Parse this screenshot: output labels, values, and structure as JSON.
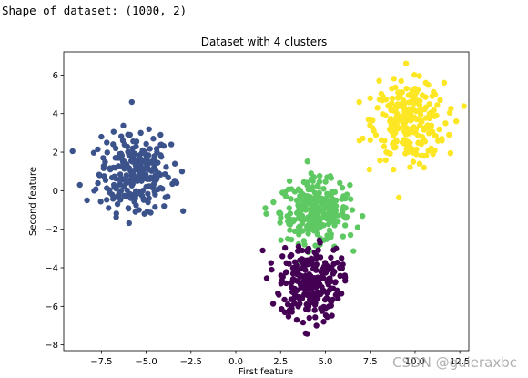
{
  "output": {
    "shape_text": "Shape of dataset: (1000, 2)"
  },
  "watermark": "CSDN @guieraxbc",
  "chart_data": {
    "type": "scatter",
    "title": "Dataset with 4 clusters",
    "xlabel": "First feature",
    "ylabel": "Second feature",
    "xlim": [
      -9.6,
      13.0
    ],
    "ylim": [
      -8.3,
      7.2
    ],
    "xticks": [
      -7.5,
      -5.0,
      -2.5,
      0.0,
      2.5,
      5.0,
      7.5,
      10.0,
      12.5
    ],
    "xtick_labels": [
      "−7.5",
      "−5.0",
      "−2.5",
      "0.0",
      "2.5",
      "5.0",
      "7.5",
      "10.0",
      "12.5"
    ],
    "yticks": [
      -8,
      -6,
      -4,
      -2,
      0,
      2,
      4,
      6
    ],
    "ytick_labels": [
      "−8",
      "−6",
      "−4",
      "−2",
      "0",
      "2",
      "4",
      "6"
    ],
    "grid": false,
    "legend": "none",
    "series": [
      {
        "color": "#3b528b",
        "count": 250,
        "points": [
          [
            -5.8,
            4.6
          ],
          [
            -5.3,
            1.2
          ],
          [
            -6.1,
            0.8
          ],
          [
            -4.7,
            1.5
          ],
          [
            -5.0,
            0.2
          ],
          [
            -6.5,
            1.9
          ],
          [
            -5.6,
            -0.4
          ],
          [
            -4.3,
            0.9
          ],
          [
            -7.0,
            1.1
          ],
          [
            -5.2,
            2.1
          ],
          [
            -6.0,
            -0.9
          ],
          [
            -4.9,
            -0.6
          ],
          [
            -5.7,
            1.6
          ],
          [
            -6.8,
            0.3
          ],
          [
            -4.4,
            2.0
          ],
          [
            -5.5,
            0.5
          ],
          [
            -7.4,
            1.7
          ],
          [
            -6.3,
            2.6
          ],
          [
            -4.1,
            0.1
          ],
          [
            -5.1,
            -1.2
          ],
          [
            -8.7,
            0.3
          ],
          [
            -8.3,
            -0.5
          ],
          [
            -7.9,
            0.0
          ],
          [
            -3.0,
            1.0
          ],
          [
            -3.4,
            1.4
          ],
          [
            -3.8,
            -0.3
          ],
          [
            -4.6,
            2.7
          ],
          [
            -5.9,
            2.9
          ],
          [
            -6.6,
            -0.7
          ],
          [
            -7.2,
            2.5
          ],
          [
            -5.4,
            -1.0
          ],
          [
            -4.0,
            -0.8
          ],
          [
            -6.2,
            1.3
          ],
          [
            -5.0,
            1.8
          ],
          [
            -4.8,
            0.6
          ],
          [
            -6.4,
            0.0
          ],
          [
            -7.6,
            0.8
          ],
          [
            -3.6,
            2.4
          ],
          [
            -5.6,
            -1.1
          ],
          [
            -6.9,
            -0.2
          ],
          [
            -7.1,
            -0.9
          ],
          [
            -4.2,
            2.9
          ],
          [
            -3.3,
            0.4
          ],
          [
            -5.3,
            3.0
          ],
          [
            -6.7,
            2.2
          ],
          [
            -7.5,
            2.8
          ],
          [
            -4.5,
            -0.2
          ],
          [
            -5.8,
            1.0
          ],
          [
            -6.1,
            0.4
          ],
          [
            -5.2,
            0.8
          ]
        ]
      },
      {
        "color": "#5ec962",
        "count": 250,
        "points": [
          [
            4.2,
            0.9
          ],
          [
            3.5,
            -0.8
          ],
          [
            4.9,
            -1.2
          ],
          [
            5.6,
            -0.5
          ],
          [
            4.0,
            -2.0
          ],
          [
            3.2,
            -1.6
          ],
          [
            5.3,
            -2.4
          ],
          [
            4.6,
            0.2
          ],
          [
            6.1,
            -1.8
          ],
          [
            2.8,
            -0.3
          ],
          [
            3.8,
            -2.6
          ],
          [
            5.0,
            -0.9
          ],
          [
            4.4,
            -1.5
          ],
          [
            6.5,
            -1.0
          ],
          [
            3.0,
            0.5
          ],
          [
            5.8,
            0.4
          ],
          [
            4.7,
            -2.8
          ],
          [
            2.5,
            -1.2
          ],
          [
            6.2,
            -0.2
          ],
          [
            3.6,
            0.0
          ],
          [
            1.7,
            -1.2
          ],
          [
            2.1,
            -0.6
          ],
          [
            6.8,
            -1.9
          ],
          [
            5.5,
            -2.9
          ],
          [
            4.1,
            -3.1
          ],
          [
            3.3,
            -2.1
          ],
          [
            5.1,
            0.7
          ],
          [
            6.0,
            -1.3
          ],
          [
            4.8,
            -0.4
          ],
          [
            3.9,
            -1.0
          ],
          [
            2.9,
            -2.5
          ],
          [
            5.7,
            -1.6
          ],
          [
            4.3,
            0.5
          ],
          [
            3.4,
            -0.5
          ],
          [
            6.4,
            -2.3
          ],
          [
            4.5,
            -1.9
          ],
          [
            5.2,
            -1.1
          ],
          [
            3.7,
            -1.7
          ],
          [
            2.6,
            -0.1
          ],
          [
            4.9,
            0.1
          ]
        ]
      },
      {
        "color": "#fde725",
        "count": 250,
        "points": [
          [
            9.5,
            6.6
          ],
          [
            7.5,
            4.8
          ],
          [
            10.0,
            5.3
          ],
          [
            9.0,
            4.0
          ],
          [
            10.8,
            4.5
          ],
          [
            9.7,
            3.2
          ],
          [
            8.6,
            3.6
          ],
          [
            11.2,
            3.9
          ],
          [
            9.3,
            2.5
          ],
          [
            10.4,
            2.8
          ],
          [
            8.2,
            4.9
          ],
          [
            11.7,
            3.5
          ],
          [
            9.9,
            1.5
          ],
          [
            8.8,
            1.1
          ],
          [
            10.6,
            5.6
          ],
          [
            7.9,
            4.3
          ],
          [
            11.5,
            2.6
          ],
          [
            8.4,
            2.0
          ],
          [
            10.1,
            3.7
          ],
          [
            9.4,
            4.6
          ],
          [
            6.9,
            2.6
          ],
          [
            7.7,
            3.1
          ],
          [
            12.3,
            3.6
          ],
          [
            11.0,
            1.9
          ],
          [
            8.0,
            5.7
          ],
          [
            10.9,
            2.2
          ],
          [
            9.1,
            5.1
          ],
          [
            10.3,
            4.2
          ],
          [
            8.9,
            3.0
          ],
          [
            11.4,
            4.7
          ],
          [
            9.6,
            2.0
          ],
          [
            8.5,
            4.4
          ],
          [
            10.7,
            3.4
          ],
          [
            9.2,
            3.8
          ],
          [
            11.9,
            2.9
          ],
          [
            8.3,
            2.6
          ],
          [
            10.5,
            1.2
          ],
          [
            9.8,
            4.9
          ],
          [
            8.7,
            5.3
          ],
          [
            10.2,
            2.5
          ]
        ]
      },
      {
        "color": "#440154",
        "count": 250,
        "points": [
          [
            4.0,
            -4.5
          ],
          [
            3.3,
            -3.7
          ],
          [
            4.8,
            -5.0
          ],
          [
            5.5,
            -4.2
          ],
          [
            3.7,
            -5.6
          ],
          [
            4.4,
            -3.2
          ],
          [
            2.8,
            -4.8
          ],
          [
            5.2,
            -6.0
          ],
          [
            4.1,
            -6.6
          ],
          [
            3.5,
            -2.9
          ],
          [
            4.6,
            -5.3
          ],
          [
            5.9,
            -3.5
          ],
          [
            2.4,
            -5.4
          ],
          [
            3.9,
            -7.4
          ],
          [
            4.7,
            -2.7
          ],
          [
            3.0,
            -6.2
          ],
          [
            5.0,
            -3.9
          ],
          [
            4.3,
            -4.9
          ],
          [
            5.7,
            -5.6
          ],
          [
            2.6,
            -3.4
          ],
          [
            1.5,
            -3.1
          ],
          [
            2.0,
            -4.1
          ],
          [
            6.1,
            -4.5
          ],
          [
            4.9,
            -6.8
          ],
          [
            3.4,
            -6.7
          ],
          [
            4.5,
            -7.0
          ],
          [
            3.8,
            -4.0
          ],
          [
            5.3,
            -4.7
          ],
          [
            4.2,
            -5.8
          ],
          [
            3.1,
            -5.0
          ],
          [
            5.6,
            -3.0
          ],
          [
            4.0,
            -3.6
          ],
          [
            3.6,
            -4.4
          ],
          [
            4.8,
            -4.1
          ],
          [
            2.9,
            -5.9
          ],
          [
            5.1,
            -5.3
          ],
          [
            4.4,
            -6.2
          ],
          [
            3.2,
            -4.3
          ],
          [
            5.8,
            -4.0
          ],
          [
            3.7,
            -3.1
          ]
        ]
      }
    ]
  }
}
